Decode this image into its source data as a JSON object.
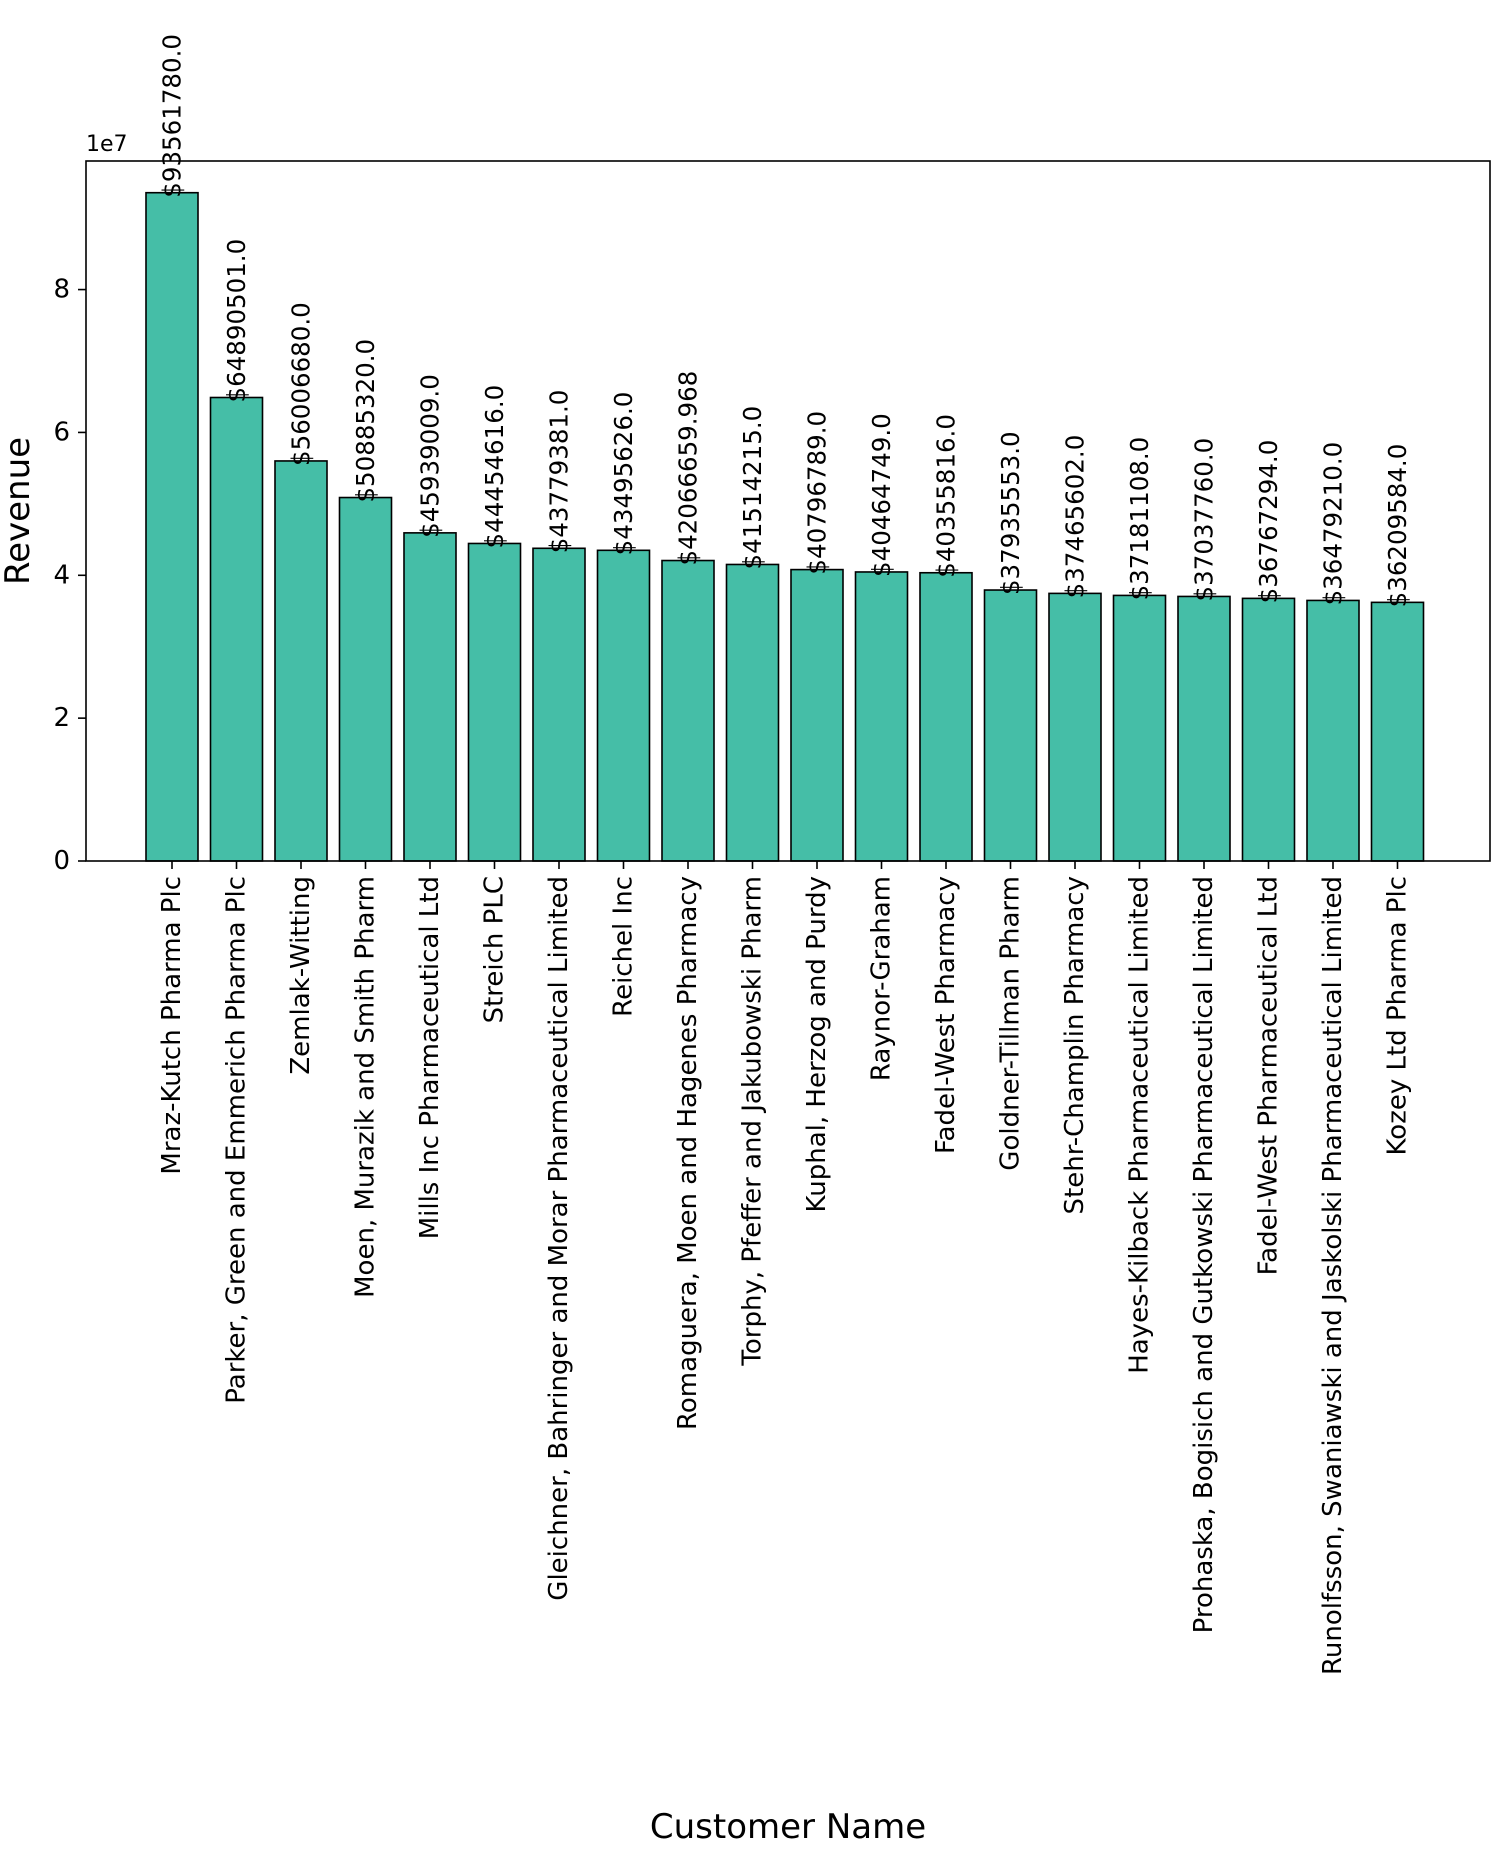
{
  "chart_data": {
    "type": "bar",
    "xlabel": "Customer Name",
    "ylabel": "Revenue",
    "y_offset_label": "1e7",
    "ylim": [
      0,
      98000000
    ],
    "yticks": [
      0,
      20000000,
      40000000,
      60000000,
      80000000
    ],
    "ytick_labels": [
      "0",
      "2",
      "4",
      "6",
      "8"
    ],
    "grid": false,
    "bar_color": "#45bea7",
    "edge_color": "#000000",
    "categories": [
      "Mraz-Kutch Pharma Plc",
      "Parker, Green and Emmerich Pharma Plc",
      "Zemlak-Witting",
      "Moen, Murazik and Smith Pharm",
      "Mills Inc Pharmaceutical Ltd",
      "Streich PLC",
      "Gleichner, Bahringer and Morar Pharmaceutical Limited",
      "Reichel Inc",
      "Romaguera, Moen and Hagenes Pharmacy",
      "Torphy, Pfeffer and Jakubowski Pharm",
      "Kuphal, Herzog and Purdy",
      "Raynor-Graham",
      "Fadel-West Pharmacy",
      "Goldner-Tillman Pharm",
      "Stehr-Champlin Pharmacy",
      "Hayes-Kilback Pharmaceutical Limited",
      "Prohaska, Bogisich and Gutkowski Pharmaceutical Limited",
      "Fadel-West Pharmaceutical Ltd",
      "Runolfsson, Swaniawski and Jaskolski Pharmaceutical Limited",
      "Kozey Ltd Pharma Plc"
    ],
    "values": [
      93561780.0,
      64890501.0,
      56006680.0,
      50885320.0,
      45939009.0,
      44454616.0,
      43779381.0,
      43495626.0,
      42066659.968,
      41514215.0,
      40796789.0,
      40464749.0,
      40355816.0,
      37935553.0,
      37465602.0,
      37181108.0,
      37037760.0,
      36767294.0,
      36479210.0,
      36209584.0
    ],
    "data_labels": [
      "$93561780.0",
      "$64890501.0",
      "$56006680.0",
      "$50885320.0",
      "$45939009.0",
      "$44454616.0",
      "$43779381.0",
      "$43495626.0",
      "$42066659.968",
      "$41514215.0",
      "$40796789.0",
      "$40464749.0",
      "$40355816.0",
      "$37935553.0",
      "$37465602.0",
      "$37181108.0",
      "$37037760.0",
      "$36767294.0",
      "$36479210.0",
      "$36209584.0"
    ]
  }
}
